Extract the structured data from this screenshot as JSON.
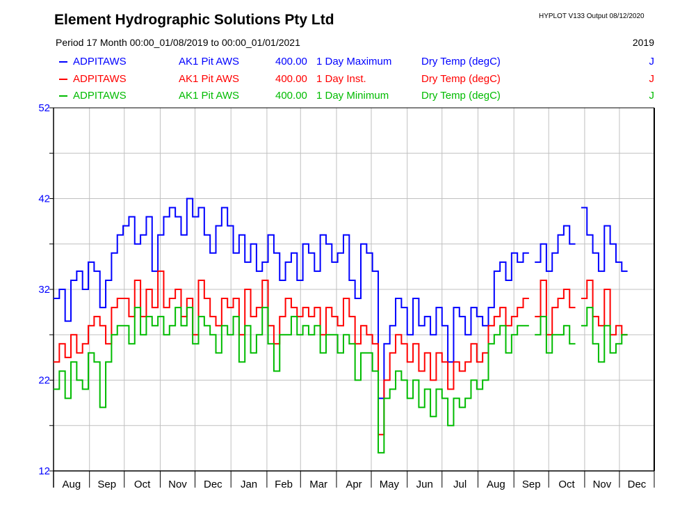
{
  "header": {
    "title": "Element Hydrographic Solutions Pty Ltd",
    "version": "HYPLOT V133  Output 08/12/2020",
    "period": "Period   17 Month  00:00_01/08/2019 to 00:00_01/01/2021",
    "year": "2019"
  },
  "legend": [
    {
      "site": "ADPITAWS",
      "name": "AK1 Pit AWS",
      "var": "400.00",
      "stat": "1 Day Maximum",
      "unit": "Dry Temp (degC)",
      "flag": "J",
      "color": "#0000ff"
    },
    {
      "site": "ADPITAWS",
      "name": "AK1 Pit AWS",
      "var": "400.00",
      "stat": "1 Day Inst.",
      "unit": "Dry Temp (degC)",
      "flag": "J",
      "color": "#ff0000"
    },
    {
      "site": "ADPITAWS",
      "name": "AK1 Pit AWS",
      "var": "400.00",
      "stat": "1 Day Minimum",
      "unit": "Dry Temp (degC)",
      "flag": "J",
      "color": "#00bb00"
    }
  ],
  "chart_data": {
    "type": "line",
    "title": "Element Hydrographic Solutions Pty Ltd",
    "xlabel": "",
    "ylabel": "Dry Temp (degC)",
    "ylim": [
      12,
      52
    ],
    "yticks": [
      12,
      22,
      32,
      42,
      52
    ],
    "x_unit": "days since 01/08/2019",
    "xlim": [
      0,
      518
    ],
    "month_ticks": [
      {
        "label": "Aug",
        "day": 0
      },
      {
        "label": "Sep",
        "day": 31
      },
      {
        "label": "Oct",
        "day": 61
      },
      {
        "label": "Nov",
        "day": 92
      },
      {
        "label": "Dec",
        "day": 122
      },
      {
        "label": "Jan",
        "day": 153
      },
      {
        "label": "Feb",
        "day": 184
      },
      {
        "label": "Mar",
        "day": 213
      },
      {
        "label": "Apr",
        "day": 244
      },
      {
        "label": "May",
        "day": 274
      },
      {
        "label": "Jun",
        "day": 305
      },
      {
        "label": "Jul",
        "day": 335
      },
      {
        "label": "Aug",
        "day": 366
      },
      {
        "label": "Sep",
        "day": 397
      },
      {
        "label": "Oct",
        "day": 427
      },
      {
        "label": "Nov",
        "day": 458
      },
      {
        "label": "Dec",
        "day": 488
      }
    ],
    "grid": true,
    "x": [
      0,
      5,
      10,
      15,
      20,
      25,
      30,
      35,
      40,
      45,
      50,
      55,
      60,
      65,
      70,
      75,
      80,
      85,
      90,
      95,
      100,
      105,
      110,
      115,
      120,
      125,
      130,
      135,
      140,
      145,
      150,
      155,
      160,
      165,
      170,
      175,
      180,
      185,
      190,
      195,
      200,
      205,
      210,
      215,
      220,
      225,
      230,
      235,
      240,
      245,
      250,
      255,
      260,
      265,
      270,
      275,
      280,
      285,
      290,
      295,
      300,
      305,
      310,
      315,
      320,
      325,
      330,
      335,
      340,
      345,
      350,
      355,
      360,
      365,
      370,
      375,
      380,
      385,
      390,
      395,
      400,
      405,
      410,
      415,
      420,
      425,
      430,
      435,
      440,
      445,
      450,
      455,
      460,
      465,
      470,
      475,
      480,
      485,
      490,
      495
    ],
    "series": [
      {
        "name": "1 Day Maximum",
        "color": "#0000ff",
        "values": [
          31,
          32,
          28.5,
          33,
          34,
          32,
          35,
          34,
          30,
          33,
          36,
          38,
          39,
          40,
          37,
          38,
          40,
          34,
          38,
          40,
          41,
          40,
          38,
          42,
          40,
          41,
          38,
          36,
          39,
          41,
          39,
          36,
          38,
          35,
          37,
          34,
          35,
          38,
          36,
          33,
          35,
          36,
          33,
          37,
          36,
          34,
          38,
          37,
          35,
          36,
          38,
          33,
          31,
          37,
          36,
          34,
          20,
          26,
          28,
          31,
          30,
          27,
          31,
          28,
          29,
          27,
          30,
          28,
          24,
          30,
          29,
          27,
          30,
          29,
          28,
          30,
          34,
          35,
          33,
          36,
          35,
          36,
          null,
          35,
          37,
          34,
          36,
          38,
          39,
          37,
          null,
          41,
          38,
          36,
          34,
          39,
          37,
          35,
          34,
          null
        ]
      },
      {
        "name": "1 Day Inst.",
        "color": "#ff0000",
        "values": [
          24,
          26,
          24.5,
          27,
          25,
          26,
          28,
          29,
          28,
          26,
          30,
          31,
          31,
          29,
          33,
          29,
          32,
          30,
          34,
          30,
          31,
          32,
          29,
          31,
          27,
          33,
          31,
          29,
          28,
          31,
          30,
          31,
          27,
          32,
          29,
          30,
          33,
          28,
          26,
          29,
          31,
          30,
          29,
          30,
          29,
          30,
          27,
          30,
          29,
          28,
          31,
          29,
          26,
          28,
          27,
          26,
          16,
          22,
          25,
          27,
          26,
          24,
          26,
          23,
          25,
          22,
          25,
          24,
          21,
          24,
          23,
          24,
          26,
          24,
          25,
          28,
          29,
          30,
          28,
          29,
          30,
          31,
          null,
          29,
          33,
          27,
          30,
          31,
          32,
          30,
          null,
          31,
          33,
          29,
          28,
          32,
          27,
          28,
          27,
          null
        ]
      },
      {
        "name": "1 Day Minimum",
        "color": "#00bb00",
        "values": [
          21,
          23,
          20,
          24,
          22,
          21,
          25,
          24,
          19,
          24,
          27,
          28,
          28,
          26,
          30,
          27,
          29,
          28,
          29,
          27,
          28,
          30,
          28,
          30,
          26,
          29,
          28,
          27,
          25,
          28,
          27,
          29,
          24,
          28,
          25,
          27,
          30,
          26,
          23,
          27,
          27,
          29,
          27,
          28,
          27,
          28,
          25,
          27,
          27,
          25,
          27,
          26,
          22,
          25,
          25,
          23,
          14,
          20,
          21,
          23,
          22,
          20,
          22,
          19,
          21,
          18,
          21,
          20,
          17,
          20,
          19,
          20,
          22,
          21,
          22,
          26,
          27,
          28,
          25,
          27,
          28,
          28,
          null,
          27,
          29,
          25,
          27,
          27,
          28,
          26,
          null,
          28,
          30,
          26,
          24,
          28,
          25,
          26,
          27,
          null
        ]
      }
    ]
  }
}
